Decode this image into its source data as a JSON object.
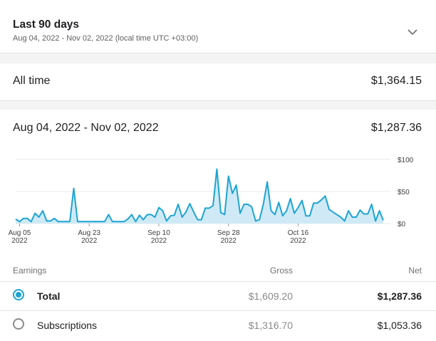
{
  "range_selector": {
    "title": "Last 90 days",
    "subtitle": "Aug 04, 2022 - Nov 02, 2022 (local time UTC +03:00)",
    "icon": "chevron-down-icon"
  },
  "all_time": {
    "label": "All time",
    "value": "$1,364.15"
  },
  "period": {
    "label": "Aug 04, 2022 - Nov 02, 2022",
    "value": "$1,287.36"
  },
  "chart_data": {
    "type": "area",
    "y_ticks": [
      "$100",
      "$50",
      "$0"
    ],
    "ylim": [
      0,
      100
    ],
    "x_ticks": [
      {
        "month": "Aug 05",
        "year": "2022"
      },
      {
        "month": "Aug 23",
        "year": "2022"
      },
      {
        "month": "Sep 10",
        "year": "2022"
      },
      {
        "month": "Sep 28",
        "year": "2022"
      },
      {
        "month": "Oct 16",
        "year": "2022"
      }
    ],
    "start_date": "2022-08-04",
    "values": [
      7,
      3,
      8,
      8,
      3,
      16,
      10,
      20,
      4,
      4,
      8,
      3,
      3,
      3,
      3,
      55,
      3,
      3,
      3,
      3,
      3,
      3,
      3,
      3,
      14,
      3,
      3,
      3,
      3,
      7,
      14,
      3,
      13,
      6,
      14,
      14,
      10,
      25,
      20,
      4,
      12,
      13,
      30,
      10,
      18,
      31,
      18,
      6,
      6,
      24,
      24,
      28,
      85,
      17,
      14,
      74,
      47,
      60,
      16,
      30,
      30,
      26,
      4,
      6,
      30,
      65,
      20,
      14,
      33,
      12,
      20,
      39,
      16,
      25,
      36,
      12,
      12,
      32,
      32,
      37,
      43,
      22,
      18,
      14,
      10,
      4,
      20,
      10,
      10,
      21,
      15,
      15,
      30,
      4,
      20,
      5
    ]
  },
  "table": {
    "headers": {
      "name": "Earnings",
      "gross": "Gross",
      "net": "Net"
    },
    "rows": [
      {
        "name": "Total",
        "gross": "$1,609.20",
        "net": "$1,287.36",
        "selected": true,
        "bold": true
      },
      {
        "name": "Subscriptions",
        "gross": "$1,316.70",
        "net": "$1,053.36",
        "selected": false,
        "bold": false
      }
    ]
  },
  "colors": {
    "accent": "#1ea4d4",
    "fill": "#cfeaf6"
  }
}
